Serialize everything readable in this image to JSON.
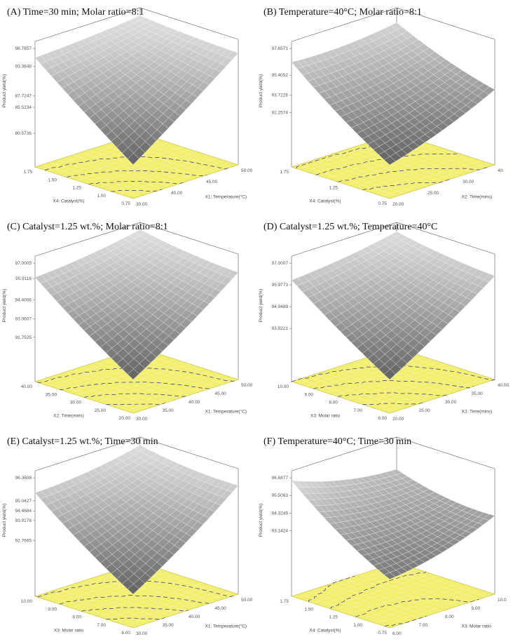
{
  "chart_data": [
    {
      "type": "surface3d",
      "panel_label": "(A) Time=30 min; Molar ratio=8:1",
      "x_axis": {
        "label": "X1: Temperature(°C)",
        "ticks": [
          "30.00",
          "40.00",
          "45.00",
          "50.00"
        ],
        "range": [
          30,
          50
        ]
      },
      "y_axis": {
        "label": "X4: Catalyst(%)",
        "ticks": [
          "0.75",
          "1.00",
          "1.25",
          "1.50",
          "1.75"
        ],
        "range": [
          0.75,
          1.75
        ]
      },
      "z_axis": {
        "label": "Product yield(%)",
        "ticks": [
          "96.7657",
          "93.3848",
          "87.7247",
          "85.5234",
          "80.5736"
        ],
        "range": [
          80.5736,
          96.7657
        ]
      },
      "surface": {
        "corners": {
          "x_min_y_min": 80.6,
          "x_max_y_min": 95.5,
          "x_min_y_max": 95.0,
          "x_max_y_max": 96.6
        },
        "curvature": 1.2
      }
    },
    {
      "type": "surface3d",
      "panel_label": "(B) Temperature=40°C; Molar ratio=8:1",
      "x_axis": {
        "label": "X2: Time(mins)",
        "ticks": [
          "20.00",
          "25.00",
          "30.00",
          "40."
        ],
        "range": [
          20,
          40
        ]
      },
      "y_axis": {
        "label": "X4: Catalyst(%)",
        "ticks": [
          "0.75",
          "1.25",
          "1.75"
        ],
        "range": [
          0.75,
          1.75
        ]
      },
      "z_axis": {
        "label": "Product yield(%)",
        "ticks": [
          "97.6571",
          "95.4052",
          "93.7226",
          "92.2574"
        ],
        "range": [
          90.5,
          97.6571
        ]
      },
      "surface": {
        "corners": {
          "x_min_y_min": 90.5,
          "x_max_y_min": 94.0,
          "x_min_y_max": 96.5,
          "x_max_y_max": 97.0
        },
        "curvature": 1.8
      }
    },
    {
      "type": "surface3d",
      "panel_label": "(C) Catalyst=1.25 wt.%; Molar ratio=8:1",
      "x_axis": {
        "label": "X1: Temperature(°C)",
        "ticks": [
          "30.00",
          "35.00",
          "40.00",
          "45.00",
          "50.00"
        ],
        "range": [
          30,
          50
        ]
      },
      "y_axis": {
        "label": "X2: Time(mins)",
        "ticks": [
          "20.00",
          "25.00",
          "30.00",
          "35.00",
          "40.00"
        ],
        "range": [
          20,
          40
        ]
      },
      "z_axis": {
        "label": "Product yield(%)",
        "ticks": [
          "97.0005",
          "95.9116",
          "94.4006",
          "93.0607",
          "91.7525"
        ],
        "range": [
          91.0,
          97.0005
        ]
      },
      "surface": {
        "corners": {
          "x_min_y_min": 91.0,
          "x_max_y_min": 96.2,
          "x_min_y_max": 96.0,
          "x_max_y_max": 97.0
        },
        "curvature": 1.0
      }
    },
    {
      "type": "surface3d",
      "panel_label": "(D) Catalyst=1.25 wt.%; Temperature=40°C",
      "x_axis": {
        "label": "X2: Time(mins)",
        "ticks": [
          "20.00",
          "25.00",
          "30.00",
          "35.00",
          "40.00"
        ],
        "range": [
          20,
          40
        ]
      },
      "y_axis": {
        "label": "X3: Molar ratio",
        "ticks": [
          "6.00",
          "7.00",
          "8.00",
          "9.00",
          "10.00"
        ],
        "range": [
          6,
          10
        ]
      },
      "z_axis": {
        "label": "Product yield(%)",
        "ticks": [
          "97.0007",
          "95.9773",
          "94.9489",
          "93.9221"
        ],
        "range": [
          93.0,
          97.0007
        ]
      },
      "surface": {
        "corners": {
          "x_min_y_min": 93.0,
          "x_max_y_min": 96.3,
          "x_min_y_max": 96.2,
          "x_max_y_max": 96.9
        },
        "curvature": 0.6
      }
    },
    {
      "type": "surface3d",
      "panel_label": "(E) Catalyst=1.25 wt.%; Time=30 min",
      "x_axis": {
        "label": "X1: Temperature(°C)",
        "ticks": [
          "30.00",
          "35.00",
          "40.00",
          "45.00",
          "50.00"
        ],
        "range": [
          30,
          50
        ]
      },
      "y_axis": {
        "label": "X3: Molar ratio",
        "ticks": [
          "6.00",
          "7.00",
          "8.00",
          "9.00",
          "10.00"
        ],
        "range": [
          6,
          10
        ]
      },
      "z_axis": {
        "label": "Product yield(%)",
        "ticks": [
          "96.3608",
          "95.0427",
          "94.4684",
          "93.9178",
          "92.7665"
        ],
        "range": [
          91.5,
          96.3608
        ]
      },
      "surface": {
        "corners": {
          "x_min_y_min": 91.5,
          "x_max_y_min": 95.8,
          "x_min_y_max": 95.5,
          "x_max_y_max": 96.3
        },
        "curvature": 1.1
      }
    },
    {
      "type": "surface3d",
      "panel_label": "(F) Temperature=40°C; Time=30 min",
      "x_axis": {
        "label": "X3: Molar ratio",
        "ticks": [
          "6.00",
          "7.00",
          "8.00",
          "9.00",
          "10.0"
        ],
        "range": [
          6,
          10
        ]
      },
      "y_axis": {
        "label": "X4: Catalyst(%)",
        "ticks": [
          "0.75",
          "1.00",
          "1.25",
          "1.50",
          "1.75"
        ],
        "range": [
          0.75,
          1.75
        ]
      },
      "z_axis": {
        "label": "Product yield(%)",
        "ticks": [
          "96.6877",
          "95.5063",
          "94.3249",
          "93.1424"
        ],
        "range": [
          91.0,
          96.6877
        ]
      },
      "surface": {
        "corners": {
          "x_min_y_min": 92.0,
          "x_max_y_min": 94.0,
          "x_min_y_max": 96.5,
          "x_max_y_max": 95.0
        },
        "curvature": 2.2
      }
    }
  ],
  "colors": {
    "surface_light": "#e6e6e6",
    "surface_dark": "#5a5a5a",
    "floor": "#f2ee6e",
    "floor_edge": "#c9c24a",
    "contour": "#2a2a8a",
    "grid": "#ffffff",
    "frame": "#555555"
  }
}
